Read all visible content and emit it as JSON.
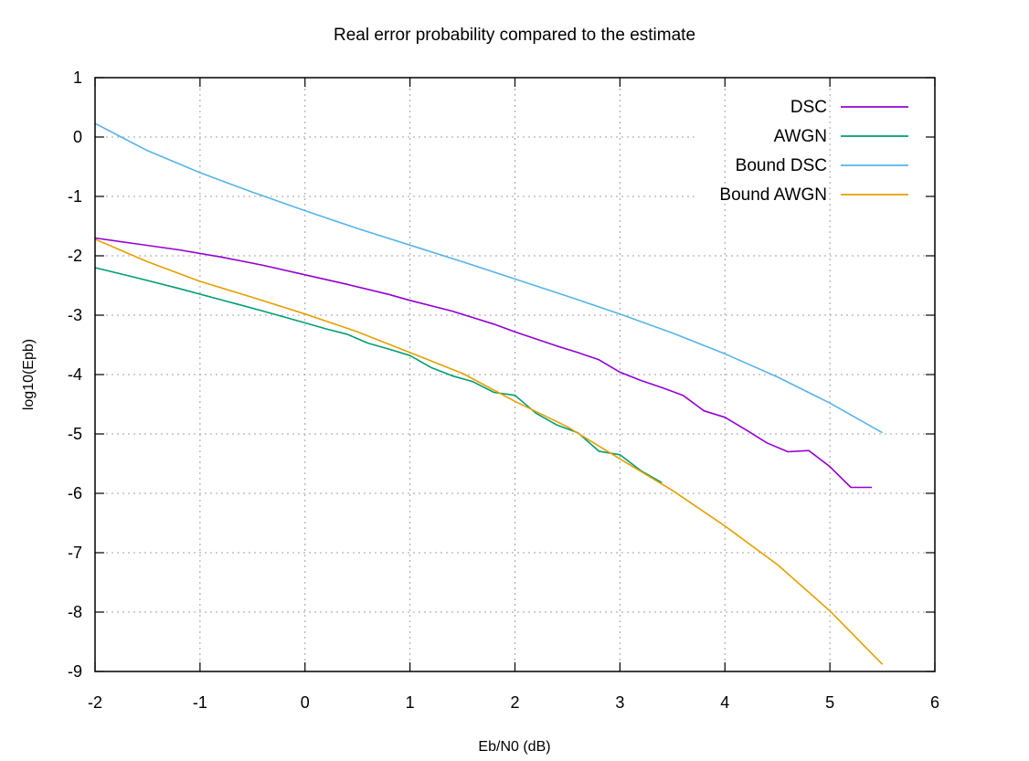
{
  "chart_data": {
    "type": "line",
    "title": "Real error probability compared to the estimate",
    "xlabel": "Eb/N0 (dB)",
    "ylabel": "log10(Epb)",
    "xlim": [
      -2,
      6
    ],
    "ylim": [
      -9,
      1
    ],
    "xticks": [
      -2,
      -1,
      0,
      1,
      2,
      3,
      4,
      5,
      6
    ],
    "yticks": [
      1,
      0,
      -1,
      -2,
      -3,
      -4,
      -5,
      -6,
      -7,
      -8,
      -9
    ],
    "grid": true,
    "legend_position": "top-right",
    "series": [
      {
        "name": "DSC",
        "color": "#9400d3",
        "x": [
          -2,
          -1.6,
          -1.2,
          -0.8,
          -0.4,
          0,
          0.4,
          0.8,
          1.0,
          1.4,
          1.8,
          2.0,
          2.4,
          2.6,
          2.8,
          3.0,
          3.2,
          3.4,
          3.6,
          3.8,
          4.0,
          4.2,
          4.4,
          4.6,
          4.8,
          5.0,
          5.2,
          5.4
        ],
        "y": [
          -1.7,
          -1.8,
          -1.9,
          -2.02,
          -2.16,
          -2.32,
          -2.48,
          -2.65,
          -2.75,
          -2.93,
          -3.15,
          -3.28,
          -3.52,
          -3.63,
          -3.75,
          -3.96,
          -4.1,
          -4.22,
          -4.35,
          -4.61,
          -4.72,
          -4.93,
          -5.15,
          -5.3,
          -5.28,
          -5.55,
          -5.9,
          -5.9
        ]
      },
      {
        "name": "AWGN",
        "color": "#009e73",
        "x": [
          -2,
          -1.6,
          -1.2,
          -0.8,
          -0.4,
          0,
          0.2,
          0.4,
          0.6,
          0.8,
          1.0,
          1.2,
          1.4,
          1.6,
          1.8,
          2.0,
          2.2,
          2.4,
          2.6,
          2.8,
          3.0,
          3.2,
          3.4
        ],
        "y": [
          -2.2,
          -2.37,
          -2.55,
          -2.74,
          -2.93,
          -3.13,
          -3.23,
          -3.32,
          -3.47,
          -3.57,
          -3.68,
          -3.88,
          -4.02,
          -4.12,
          -4.3,
          -4.35,
          -4.65,
          -4.85,
          -4.98,
          -5.29,
          -5.35,
          -5.62,
          -5.82
        ]
      },
      {
        "name": "Bound DSC",
        "color": "#56b4e9",
        "x": [
          -2,
          -1.5,
          -1,
          -0.5,
          0,
          0.5,
          1,
          1.5,
          2,
          2.5,
          3,
          3.5,
          4,
          4.5,
          5,
          5.5
        ],
        "y": [
          0.23,
          -0.23,
          -0.6,
          -0.93,
          -1.24,
          -1.54,
          -1.82,
          -2.1,
          -2.39,
          -2.68,
          -2.98,
          -3.3,
          -3.65,
          -4.04,
          -4.48,
          -4.98
        ]
      },
      {
        "name": "Bound AWGN",
        "color": "#e69f00",
        "x": [
          -2,
          -1.5,
          -1,
          -0.5,
          0,
          0.5,
          1,
          1.5,
          2,
          2.5,
          3,
          3.5,
          4,
          4.5,
          5,
          5.5
        ],
        "y": [
          -1.72,
          -2.1,
          -2.43,
          -2.7,
          -2.98,
          -3.28,
          -3.63,
          -3.98,
          -4.45,
          -4.88,
          -5.42,
          -5.95,
          -6.55,
          -7.2,
          -7.98,
          -8.88
        ]
      }
    ]
  }
}
